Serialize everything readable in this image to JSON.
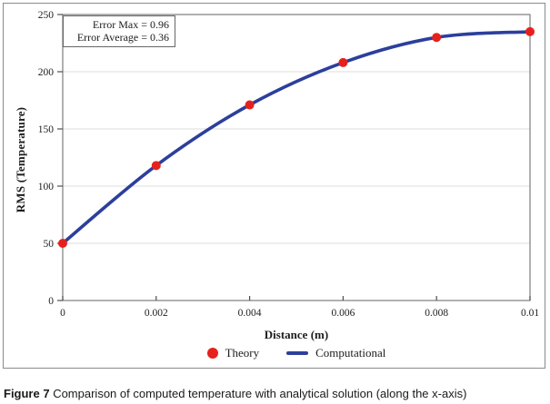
{
  "figure": {
    "caption_label": "Figure 7",
    "caption_text": " Comparison of computed temperature with analytical solution (along the x-axis)"
  },
  "axes": {
    "x_label": "Distance (m)",
    "y_label": "RMS (Temperature)"
  },
  "annotation_box": {
    "line1": "Error Max = 0.96",
    "line2": "Error Average = 0.36"
  },
  "legend": {
    "items": [
      {
        "label": "Theory",
        "marker": "circle",
        "color": "#e6211d"
      },
      {
        "label": "Computational",
        "marker": "line",
        "color": "#2b3f9c"
      }
    ]
  },
  "colors": {
    "theory_red": "#e6211d",
    "computational_blue": "#2b3f9c",
    "gridline": "#dcdcdc",
    "plot_border": "#7d7d7d",
    "tick": "#4f4f4f",
    "text": "#1c1c1c"
  },
  "chart_data": {
    "type": "line",
    "title": "",
    "xlabel": "Distance (m)",
    "ylabel": "RMS (Temperature)",
    "xlim": [
      0,
      0.01
    ],
    "ylim": [
      0,
      250
    ],
    "x_ticks": [
      "0",
      "0.002",
      "0.004",
      "0.006",
      "0.008",
      "0.01"
    ],
    "x_tick_values": [
      0,
      0.002,
      0.004,
      0.006,
      0.008,
      0.01
    ],
    "y_ticks": [
      "0",
      "50",
      "100",
      "150",
      "200",
      "250"
    ],
    "y_tick_values": [
      0,
      50,
      100,
      150,
      200,
      250
    ],
    "grid": "horizontal-only",
    "legend_position": "bottom-center",
    "annotation": [
      "Error Max = 0.96",
      "Error Average = 0.36"
    ],
    "series": [
      {
        "name": "Theory",
        "style": "scatter",
        "color": "#e6211d",
        "x": [
          0,
          0.002,
          0.004,
          0.006,
          0.008,
          0.01
        ],
        "y": [
          50,
          118,
          171,
          208,
          230,
          235
        ]
      },
      {
        "name": "Computational",
        "style": "smooth-line",
        "color": "#2b3f9c",
        "x": [
          0,
          0.002,
          0.004,
          0.006,
          0.008,
          0.01
        ],
        "y": [
          50,
          118,
          171,
          208,
          230,
          235
        ]
      }
    ]
  }
}
